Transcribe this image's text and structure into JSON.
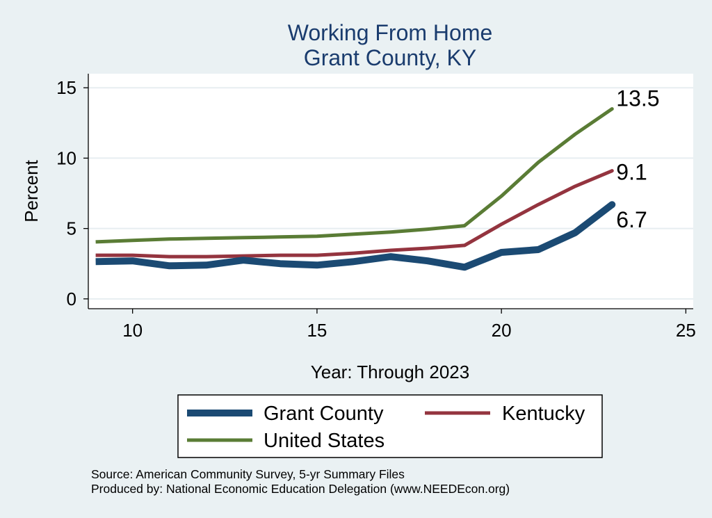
{
  "chart_data": {
    "type": "line",
    "title": [
      "Working From Home",
      "Grant County, KY"
    ],
    "xlabel": "Year: Through 2023",
    "ylabel": "Percent",
    "xlim": [
      8.8,
      25.2
    ],
    "ylim": [
      -0.7,
      16
    ],
    "xticks": [
      10,
      15,
      20,
      25
    ],
    "yticks": [
      0,
      5,
      10,
      15
    ],
    "grid": true,
    "legend_position": "bottom",
    "series": [
      {
        "name": "Grant County",
        "color": "#1b4a73",
        "x": [
          9,
          10,
          11,
          12,
          13,
          14,
          15,
          16,
          17,
          18,
          19,
          20,
          21,
          22,
          23
        ],
        "y": [
          2.65,
          2.7,
          2.35,
          2.4,
          2.75,
          2.5,
          2.4,
          2.65,
          3.0,
          2.7,
          2.25,
          3.3,
          3.5,
          4.7,
          6.7
        ],
        "end_label": "6.7"
      },
      {
        "name": "Kentucky",
        "color": "#94343f",
        "x": [
          9,
          10,
          11,
          12,
          13,
          14,
          15,
          16,
          17,
          18,
          19,
          20,
          21,
          22,
          23
        ],
        "y": [
          3.1,
          3.1,
          3.0,
          3.0,
          3.05,
          3.1,
          3.1,
          3.25,
          3.45,
          3.6,
          3.8,
          5.3,
          6.7,
          8.0,
          9.1
        ],
        "end_label": "9.1"
      },
      {
        "name": "United States",
        "color": "#5a7c35",
        "x": [
          9,
          10,
          11,
          12,
          13,
          14,
          15,
          16,
          17,
          18,
          19,
          20,
          21,
          22,
          23
        ],
        "y": [
          4.05,
          4.15,
          4.25,
          4.3,
          4.35,
          4.4,
          4.45,
          4.6,
          4.75,
          4.95,
          5.2,
          7.3,
          9.7,
          11.7,
          13.5
        ],
        "end_label": "13.5"
      }
    ],
    "legend": [
      {
        "label": "Grant County",
        "color": "#1b4a73"
      },
      {
        "label": "Kentucky",
        "color": "#94343f"
      },
      {
        "label": "United States",
        "color": "#5a7c35"
      }
    ],
    "notes": [
      "Source: American Community Survey, 5-yr Summary Files",
      "Produced by: National Economic Education Delegation (www.NEEDEcon.org)"
    ]
  }
}
